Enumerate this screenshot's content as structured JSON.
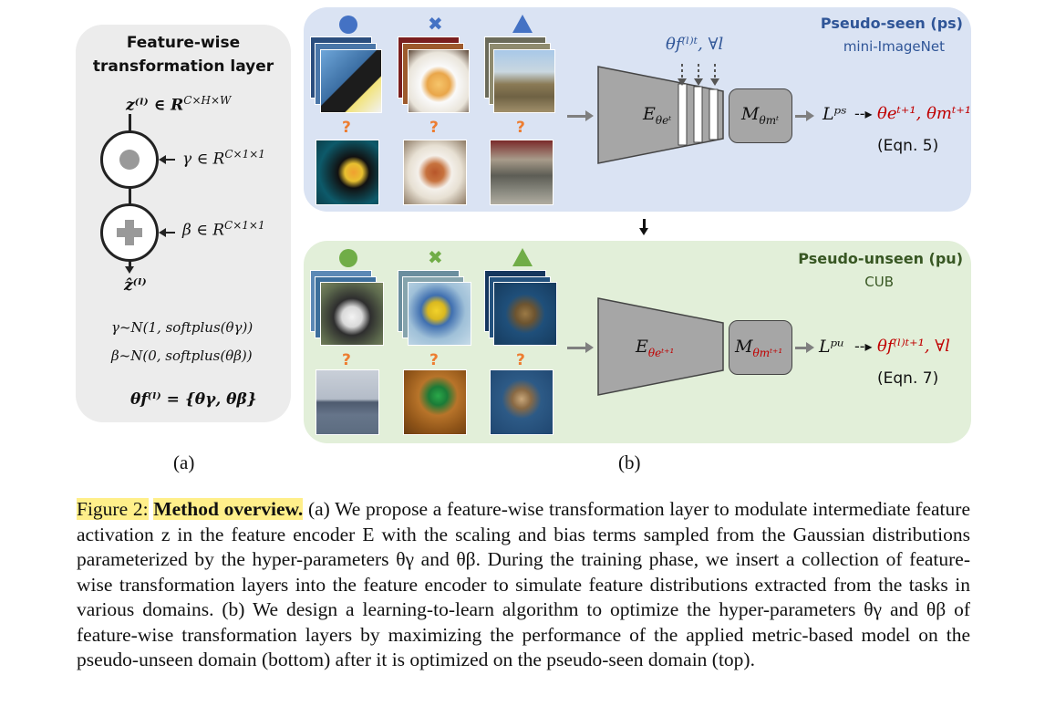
{
  "panel_a": {
    "title_line1": "Feature-wise",
    "title_line2": "transformation layer",
    "z_in": "z⁽ˡ⁾ ∈ R",
    "z_in_sup": "C×H×W",
    "gamma": "γ ∈ R",
    "gamma_sup": "C×1×1",
    "beta": "β ∈ R",
    "beta_sup": "C×1×1",
    "z_out": "ẑ⁽ˡ⁾",
    "gamma_dist": "γ~N(1, softplus(θγ))",
    "beta_dist": "β~N(0, softplus(θβ))",
    "theta_def": "θf⁽ˡ⁾ = {θγ, θβ}",
    "label": "(a)"
  },
  "panel_ps": {
    "title": "Pseudo-seen (ps)",
    "subtitle": "mini-ImageNet",
    "theta_f": "θf⁽ˡ⁾ᵗ, ∀l",
    "encoder": "E",
    "encoder_sub": "θeᵗ",
    "metric": "M",
    "metric_sub": "θmᵗ",
    "loss": "Lᵖˢ",
    "update": "θeᵗ⁺¹, θmᵗ⁺¹",
    "eqn": "(Eqn. 5)",
    "query_marks": [
      "?",
      "?",
      "?"
    ]
  },
  "panel_pu": {
    "title": "Pseudo-unseen (pu)",
    "subtitle": "CUB",
    "encoder": "E",
    "encoder_sub": "θeᵗ⁺¹",
    "metric": "M",
    "metric_sub": "θmᵗ⁺¹",
    "loss": "Lᵖᵘ",
    "update": "θf⁽ˡ⁾ᵗ⁺¹, ∀l",
    "eqn": "(Eqn. 7)",
    "query_marks": [
      "?",
      "?",
      "?"
    ]
  },
  "panel_b_label": "(b)",
  "caption": {
    "figure_label": "Figure 2:",
    "bold_title": "Method overview.",
    "text": "(a) We propose a feature-wise transformation layer to modulate intermediate feature activation z in the feature encoder E with the scaling and bias terms sampled from the Gaussian distributions parameterized by the hyper-parameters θγ and θβ. During the training phase, we insert a collection of feature-wise transformation layers into the feature encoder to simulate feature distributions extracted from the tasks in various domains. (b) We design a learning-to-learn algorithm to optimize the hyper-parameters θγ and θβ of feature-wise transformation layers by maximizing the performance of the applied metric-based model on the pseudo-unseen domain (bottom) after it is optimized on the pseudo-seen domain (top)."
  },
  "colors": {
    "ps_bg": "#dae3f3",
    "pu_bg": "#e2efd9",
    "ps_title": "#2f5597",
    "pu_title": "#385723",
    "red_update": "#c00000",
    "orange_q": "#ed7d31",
    "blue_shape": "#4472c4",
    "green_shape": "#70ad47"
  }
}
